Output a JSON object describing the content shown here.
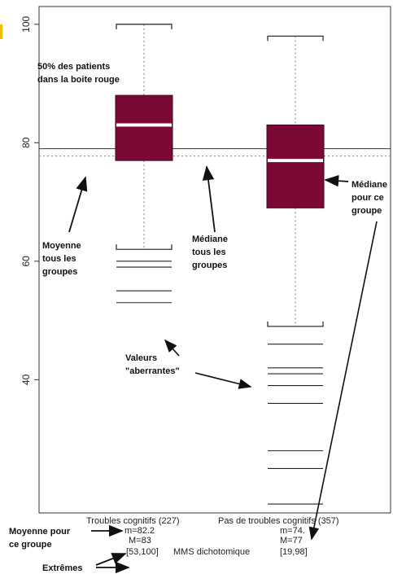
{
  "chart_data": {
    "type": "boxplot",
    "xlabel": "MMS dichotomique",
    "ylim": [
      17.5,
      103
    ],
    "y_ticks": [
      40,
      60,
      80,
      100
    ],
    "reference_line_y": 79,
    "categories": [
      {
        "label": "Troubles cognitifs (227)",
        "mean_text": "m=82.2",
        "median_text": "M=83",
        "range_text": "[53,100]",
        "median": 83,
        "q1": 77,
        "q3": 88,
        "whisker_low": 62,
        "whisker_high": 100,
        "outliers": [
          60,
          59,
          55,
          53
        ]
      },
      {
        "label": "Pas de troubles cognitifs (357)",
        "mean_text": "m=74.",
        "median_text": "M=77",
        "range_text": "[19,98]",
        "median": 77,
        "q1": 69,
        "q3": 83,
        "whisker_low": 49,
        "whisker_high": 98,
        "outliers": [
          46,
          42,
          41,
          39,
          36,
          28,
          25,
          19
        ]
      }
    ],
    "annotations": {
      "box_note": [
        "50% des patients",
        "dans la boite rouge"
      ],
      "overall_mean": [
        "Moyenne",
        "tous les",
        "groupes"
      ],
      "overall_median": [
        "Médiane",
        "tous les",
        "groupes"
      ],
      "group_median": [
        "Médiane",
        "pour ce",
        "groupe"
      ],
      "outliers_note": [
        "Valeurs",
        "\"aberrantes\""
      ],
      "group_mean": [
        "Moyenne pour",
        "ce groupe"
      ],
      "extremes": "Extrêmes"
    },
    "colors": {
      "box_fill": "#7a0a35",
      "median_line": "#ffffff",
      "whisker": "#333333",
      "dotted": "#9a9a9a",
      "accent_tick": "#e8c400"
    },
    "grid": false
  }
}
